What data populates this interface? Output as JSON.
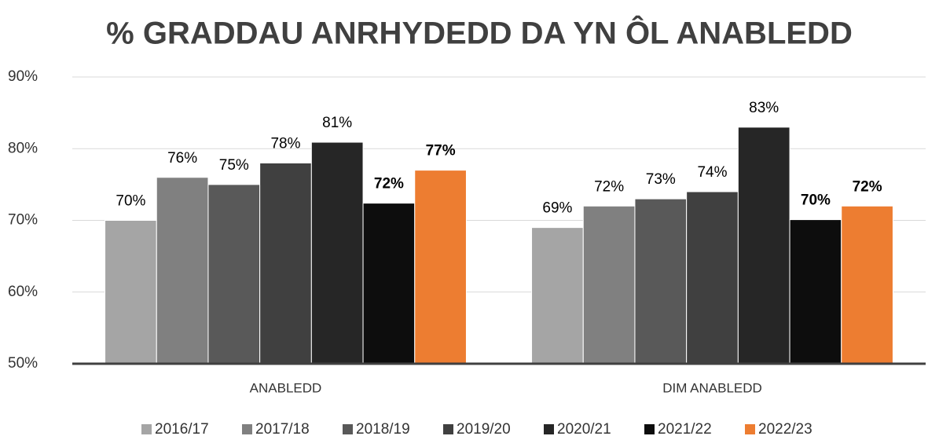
{
  "chart_data": {
    "type": "bar",
    "title": "% GRADDAU ANRHYDEDD DA YN ÔL ANABLEDD",
    "categories": [
      "ANABLEDD",
      "DIM ANABLEDD"
    ],
    "series": [
      {
        "name": "2016/17",
        "color": "#a5a5a5",
        "values": [
          70,
          69
        ],
        "value_labels": [
          "70%",
          "69%"
        ]
      },
      {
        "name": "2017/18",
        "color": "#808080",
        "values": [
          76,
          72
        ],
        "value_labels": [
          "76%",
          "72%"
        ]
      },
      {
        "name": "2018/19",
        "color": "#595959",
        "values": [
          75,
          73
        ],
        "value_labels": [
          "75%",
          "73%"
        ]
      },
      {
        "name": "2019/20",
        "color": "#404040",
        "values": [
          78,
          74
        ],
        "value_labels": [
          "78%",
          "74%"
        ]
      },
      {
        "name": "2020/21",
        "color": "#262626",
        "values": [
          80.9,
          83
        ],
        "value_labels": [
          "81%",
          "83%"
        ]
      },
      {
        "name": "2021/22",
        "color": "#0d0d0d",
        "values": [
          72.4,
          70.1
        ],
        "value_labels": [
          "72%",
          "70%"
        ]
      },
      {
        "name": "2022/23",
        "color": "#ed7d31",
        "values": [
          77,
          72
        ],
        "value_labels": [
          "77%",
          "72%"
        ]
      }
    ],
    "ylim": [
      50,
      90
    ],
    "yticks": [
      {
        "value": 50,
        "label": "50%"
      },
      {
        "value": 60,
        "label": "60%"
      },
      {
        "value": 70,
        "label": "70%"
      },
      {
        "value": 80,
        "label": "80%"
      },
      {
        "value": 90,
        "label": "90%"
      }
    ],
    "grid": true,
    "legend": "bottom"
  }
}
